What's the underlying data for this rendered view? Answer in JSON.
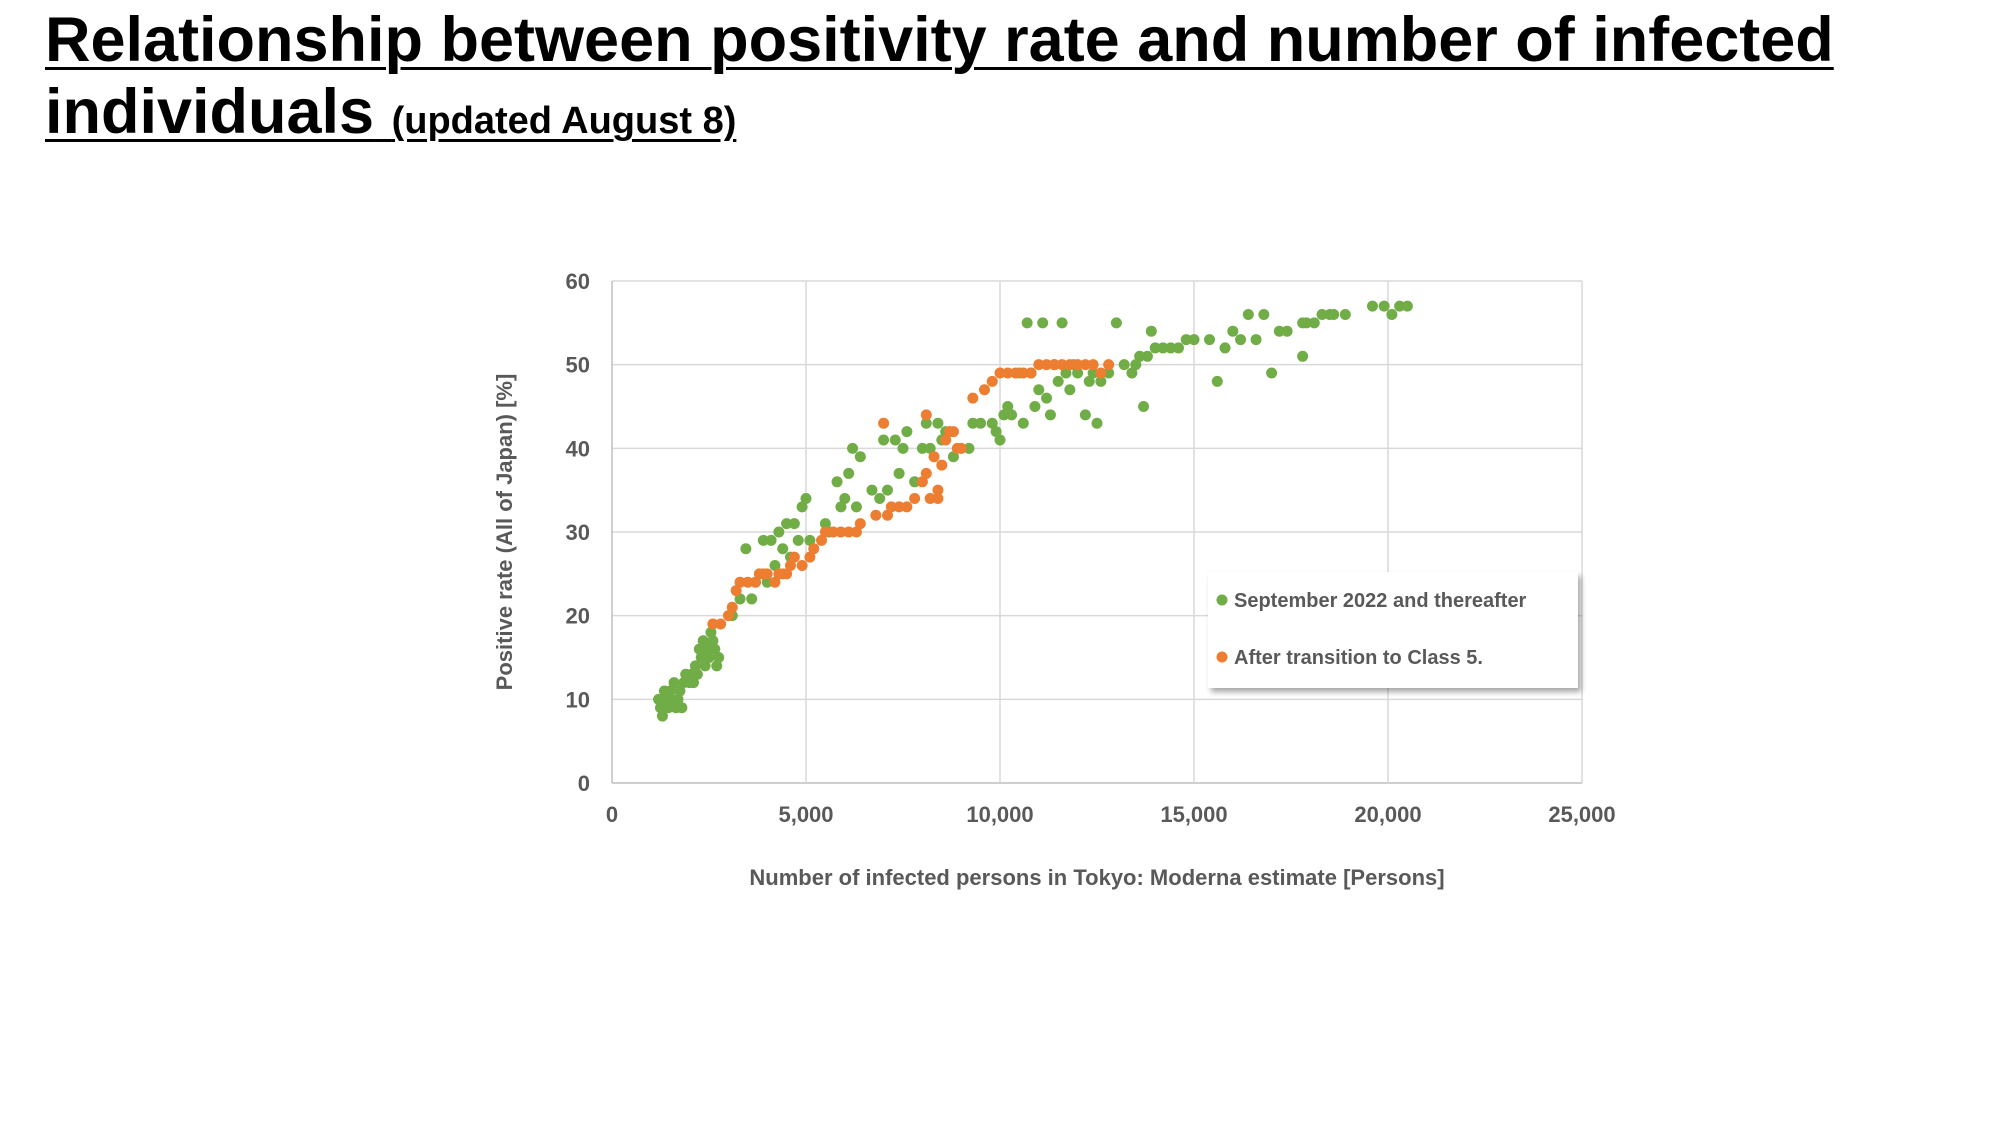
{
  "slide": {
    "title_main": "Relationship between positivity rate and number of infected",
    "title_main_2": "individuals",
    "title_sub": "(updated August 8)"
  },
  "chart_data": {
    "type": "scatter",
    "xlabel": "Number of infected persons in Tokyo: Moderna estimate [Persons]",
    "ylabel": "Positive rate (All of Japan) [%]",
    "xlim": [
      0,
      25000
    ],
    "ylim": [
      0,
      60
    ],
    "x_ticks": [
      "0",
      "5,000",
      "10,000",
      "15,000",
      "20,000",
      "25,000"
    ],
    "y_ticks": [
      "0",
      "10",
      "20",
      "30",
      "40",
      "50",
      "60"
    ],
    "grid": true,
    "legend_position": "right",
    "series": [
      {
        "name": "September 2022 and thereafter",
        "color": "#70AD47",
        "points": [
          [
            1200,
            10
          ],
          [
            1250,
            9
          ],
          [
            1300,
            8
          ],
          [
            1350,
            11
          ],
          [
            1400,
            10
          ],
          [
            1450,
            9
          ],
          [
            1500,
            11
          ],
          [
            1550,
            10
          ],
          [
            1600,
            12
          ],
          [
            1650,
            9
          ],
          [
            1700,
            10
          ],
          [
            1750,
            11
          ],
          [
            1800,
            9
          ],
          [
            1850,
            12
          ],
          [
            1900,
            13
          ],
          [
            2000,
            12
          ],
          [
            2050,
            13
          ],
          [
            2100,
            12
          ],
          [
            2150,
            14
          ],
          [
            2200,
            13
          ],
          [
            2250,
            16
          ],
          [
            2300,
            15
          ],
          [
            2350,
            17
          ],
          [
            2400,
            14
          ],
          [
            2450,
            16
          ],
          [
            2500,
            15
          ],
          [
            2550,
            18
          ],
          [
            2600,
            17
          ],
          [
            2650,
            16
          ],
          [
            2700,
            14
          ],
          [
            2750,
            15
          ],
          [
            3100,
            20
          ],
          [
            3300,
            22
          ],
          [
            3450,
            28
          ],
          [
            3600,
            22
          ],
          [
            3800,
            25
          ],
          [
            3900,
            29
          ],
          [
            4000,
            24
          ],
          [
            4100,
            29
          ],
          [
            4200,
            26
          ],
          [
            4300,
            30
          ],
          [
            4400,
            28
          ],
          [
            4500,
            31
          ],
          [
            4600,
            27
          ],
          [
            4700,
            31
          ],
          [
            4800,
            29
          ],
          [
            4900,
            33
          ],
          [
            5000,
            34
          ],
          [
            5100,
            29
          ],
          [
            5500,
            31
          ],
          [
            5600,
            30
          ],
          [
            5800,
            36
          ],
          [
            5900,
            33
          ],
          [
            6000,
            34
          ],
          [
            6100,
            37
          ],
          [
            6200,
            40
          ],
          [
            6300,
            33
          ],
          [
            6400,
            39
          ],
          [
            6700,
            35
          ],
          [
            6900,
            34
          ],
          [
            7000,
            41
          ],
          [
            7100,
            35
          ],
          [
            7300,
            41
          ],
          [
            7400,
            37
          ],
          [
            7500,
            40
          ],
          [
            7600,
            42
          ],
          [
            7800,
            36
          ],
          [
            8000,
            40
          ],
          [
            8100,
            43
          ],
          [
            8200,
            40
          ],
          [
            8400,
            43
          ],
          [
            8500,
            41
          ],
          [
            8600,
            42
          ],
          [
            8800,
            39
          ],
          [
            9200,
            40
          ],
          [
            9300,
            43
          ],
          [
            9500,
            43
          ],
          [
            9800,
            43
          ],
          [
            9900,
            42
          ],
          [
            10000,
            41
          ],
          [
            10100,
            44
          ],
          [
            10200,
            45
          ],
          [
            10300,
            44
          ],
          [
            10500,
            49
          ],
          [
            10600,
            43
          ],
          [
            10700,
            55
          ],
          [
            10800,
            49
          ],
          [
            10900,
            45
          ],
          [
            11000,
            47
          ],
          [
            11100,
            55
          ],
          [
            11200,
            46
          ],
          [
            11300,
            44
          ],
          [
            11400,
            50
          ],
          [
            11500,
            48
          ],
          [
            11600,
            55
          ],
          [
            11700,
            49
          ],
          [
            11800,
            47
          ],
          [
            11900,
            50
          ],
          [
            12000,
            49
          ],
          [
            12200,
            44
          ],
          [
            12300,
            48
          ],
          [
            12400,
            49
          ],
          [
            12500,
            43
          ],
          [
            12600,
            48
          ],
          [
            12800,
            49
          ],
          [
            13000,
            55
          ],
          [
            13200,
            50
          ],
          [
            13400,
            49
          ],
          [
            13500,
            50
          ],
          [
            13600,
            51
          ],
          [
            13700,
            45
          ],
          [
            13800,
            51
          ],
          [
            13900,
            54
          ],
          [
            14000,
            52
          ],
          [
            14200,
            52
          ],
          [
            14400,
            52
          ],
          [
            14600,
            52
          ],
          [
            14800,
            53
          ],
          [
            15000,
            53
          ],
          [
            15400,
            53
          ],
          [
            15600,
            48
          ],
          [
            15800,
            52
          ],
          [
            16000,
            54
          ],
          [
            16200,
            53
          ],
          [
            16400,
            56
          ],
          [
            16600,
            53
          ],
          [
            16800,
            56
          ],
          [
            17000,
            49
          ],
          [
            17200,
            54
          ],
          [
            17400,
            54
          ],
          [
            17800,
            55
          ],
          [
            17900,
            55
          ],
          [
            18100,
            55
          ],
          [
            18300,
            56
          ],
          [
            18500,
            56
          ],
          [
            18600,
            56
          ],
          [
            18900,
            56
          ],
          [
            19600,
            57
          ],
          [
            19900,
            57
          ],
          [
            20100,
            56
          ],
          [
            20300,
            57
          ],
          [
            20500,
            57
          ],
          [
            17800,
            51
          ]
        ]
      },
      {
        "name": "After transition to Class 5.",
        "color": "#ED7D31",
        "points": [
          [
            2600,
            19
          ],
          [
            2800,
            19
          ],
          [
            3000,
            20
          ],
          [
            3100,
            21
          ],
          [
            3200,
            23
          ],
          [
            3300,
            24
          ],
          [
            3500,
            24
          ],
          [
            3700,
            24
          ],
          [
            3800,
            25
          ],
          [
            3900,
            25
          ],
          [
            4000,
            25
          ],
          [
            4200,
            24
          ],
          [
            4300,
            25
          ],
          [
            4400,
            25
          ],
          [
            4500,
            25
          ],
          [
            4600,
            26
          ],
          [
            4700,
            27
          ],
          [
            4900,
            26
          ],
          [
            5100,
            27
          ],
          [
            5200,
            28
          ],
          [
            5400,
            29
          ],
          [
            5500,
            30
          ],
          [
            5700,
            30
          ],
          [
            5900,
            30
          ],
          [
            6100,
            30
          ],
          [
            6300,
            30
          ],
          [
            6400,
            31
          ],
          [
            6800,
            32
          ],
          [
            7000,
            43
          ],
          [
            7100,
            32
          ],
          [
            7200,
            33
          ],
          [
            7400,
            33
          ],
          [
            7600,
            33
          ],
          [
            7800,
            34
          ],
          [
            8000,
            36
          ],
          [
            8100,
            37
          ],
          [
            8200,
            34
          ],
          [
            8300,
            39
          ],
          [
            8400,
            35
          ],
          [
            8500,
            38
          ],
          [
            8600,
            41
          ],
          [
            8700,
            42
          ],
          [
            8800,
            42
          ],
          [
            8900,
            40
          ],
          [
            9000,
            40
          ],
          [
            9300,
            46
          ],
          [
            9600,
            47
          ],
          [
            9800,
            48
          ],
          [
            10000,
            49
          ],
          [
            10200,
            49
          ],
          [
            10400,
            49
          ],
          [
            10600,
            49
          ],
          [
            10800,
            49
          ],
          [
            11000,
            50
          ],
          [
            11200,
            50
          ],
          [
            11400,
            50
          ],
          [
            11600,
            50
          ],
          [
            11800,
            50
          ],
          [
            12000,
            50
          ],
          [
            12200,
            50
          ],
          [
            12400,
            50
          ],
          [
            12600,
            49
          ],
          [
            12800,
            50
          ],
          [
            8100,
            44
          ],
          [
            8400,
            34
          ],
          [
            8700,
            42
          ]
        ]
      }
    ]
  }
}
